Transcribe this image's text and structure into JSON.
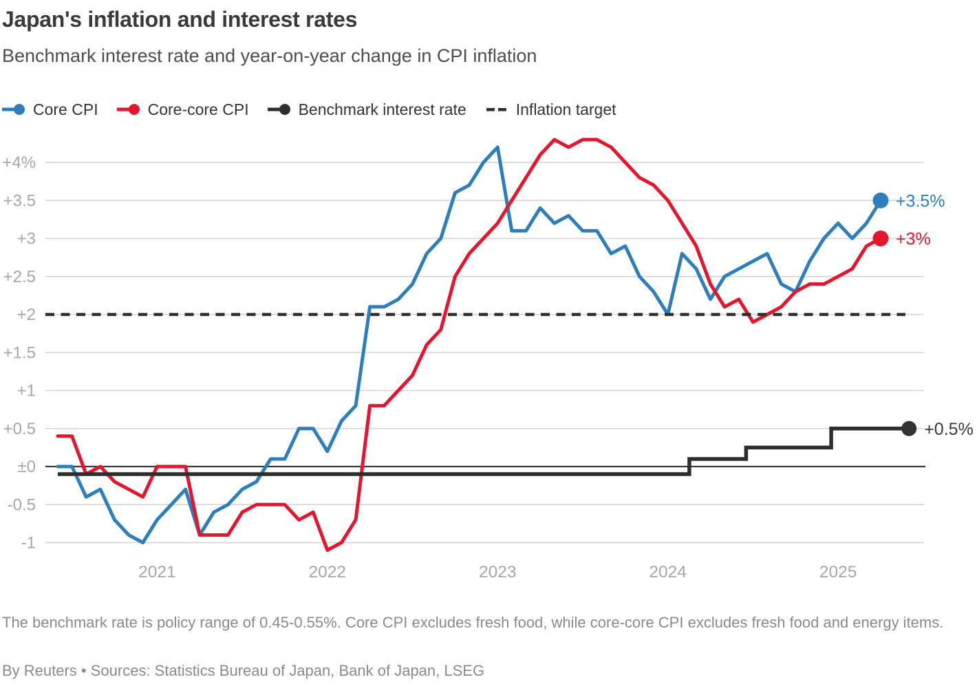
{
  "header": {
    "title": "Japan's inflation and interest rates",
    "subtitle": "Benchmark interest rate and year-on-year change in CPI inflation"
  },
  "legend": [
    {
      "label": "Core CPI",
      "marker": "line-dot",
      "color": "#2F7EBC"
    },
    {
      "label": "Core-core CPI",
      "marker": "line-dot",
      "color": "#E3162D"
    },
    {
      "label": "Benchmark interest rate",
      "marker": "line-dot",
      "color": "#2E2E2E"
    },
    {
      "label": "Inflation target",
      "marker": "dashes",
      "color": "#2E2E2E"
    }
  ],
  "chart_data": {
    "type": "line",
    "title": "Japan's inflation and interest rates",
    "subtitle": "Benchmark interest rate and year-on-year change in CPI inflation",
    "unit": "percent year-on-year",
    "x_start_month": "2020-06",
    "x_end_month": "2025-04",
    "ylim": [
      -1.3,
      4.45
    ],
    "grid": "horizontal",
    "y_ticks": [
      {
        "value": 4,
        "label": "+4%"
      },
      {
        "value": 3.5,
        "label": "+3.5"
      },
      {
        "value": 3,
        "label": "+3"
      },
      {
        "value": 2.5,
        "label": "+2.5"
      },
      {
        "value": 2,
        "label": "+2"
      },
      {
        "value": 1.5,
        "label": "+1.5"
      },
      {
        "value": 1,
        "label": "+1"
      },
      {
        "value": 0.5,
        "label": "+0.5"
      },
      {
        "value": 0,
        "label": "±0"
      },
      {
        "value": -0.5,
        "label": "-0.5"
      },
      {
        "value": -1,
        "label": "-1"
      }
    ],
    "x_ticks": [
      {
        "label": "2021",
        "month_index": 7
      },
      {
        "label": "2022",
        "month_index": 19
      },
      {
        "label": "2023",
        "month_index": 31
      },
      {
        "label": "2024",
        "month_index": 43
      },
      {
        "label": "2025",
        "month_index": 55
      }
    ],
    "inflation_target": {
      "value": 2,
      "label": "Inflation target"
    },
    "series": [
      {
        "name": "Core CPI",
        "color": "#2F7EBC",
        "end_label": "+3.5%",
        "end_value": 3.5,
        "values": [
          0.0,
          0.0,
          -0.4,
          -0.3,
          -0.7,
          -0.9,
          -1.0,
          -0.7,
          -0.5,
          -0.3,
          -0.9,
          -0.6,
          -0.5,
          -0.3,
          -0.2,
          0.1,
          0.1,
          0.5,
          0.5,
          0.2,
          0.6,
          0.8,
          2.1,
          2.1,
          2.2,
          2.4,
          2.8,
          3.0,
          3.6,
          3.7,
          4.0,
          4.2,
          3.1,
          3.1,
          3.4,
          3.2,
          3.3,
          3.1,
          3.1,
          2.8,
          2.9,
          2.5,
          2.3,
          2.0,
          2.8,
          2.6,
          2.2,
          2.5,
          2.6,
          2.7,
          2.8,
          2.4,
          2.3,
          2.7,
          3.0,
          3.2,
          3.0,
          3.2,
          3.5
        ]
      },
      {
        "name": "Core-core CPI",
        "color": "#E3162D",
        "end_label": "+3%",
        "end_value": 3.0,
        "values": [
          0.4,
          0.4,
          -0.1,
          0.0,
          -0.2,
          -0.3,
          -0.4,
          0.0,
          0.0,
          0.0,
          -0.9,
          -0.9,
          -0.9,
          -0.6,
          -0.5,
          -0.5,
          -0.5,
          -0.7,
          -0.6,
          -1.1,
          -1.0,
          -0.7,
          0.8,
          0.8,
          1.0,
          1.2,
          1.6,
          1.8,
          2.5,
          2.8,
          3.0,
          3.2,
          3.5,
          3.8,
          4.1,
          4.3,
          4.2,
          4.3,
          4.3,
          4.2,
          4.0,
          3.8,
          3.7,
          3.5,
          3.2,
          2.9,
          2.4,
          2.1,
          2.2,
          1.9,
          2.0,
          2.1,
          2.3,
          2.4,
          2.4,
          2.5,
          2.6,
          2.9,
          3.0
        ]
      },
      {
        "name": "Benchmark interest rate",
        "color": "#2E2E2E",
        "type": "step",
        "end_label": "+0.5%",
        "end_value": 0.5,
        "steps": [
          {
            "month_index": 0,
            "value": -0.1
          },
          {
            "month_index": 45,
            "value": 0.1
          },
          {
            "month_index": 49,
            "value": 0.25
          },
          {
            "month_index": 55,
            "value": 0.5
          }
        ],
        "extends_to_index": 60
      }
    ]
  },
  "footnote": "The benchmark rate is policy range of 0.45-0.55%. Core CPI excludes fresh food, while core-core CPI excludes fresh food and energy items.",
  "source": "By Reuters • Sources: Statistics Bureau of Japan, Bank of Japan, LSEG"
}
